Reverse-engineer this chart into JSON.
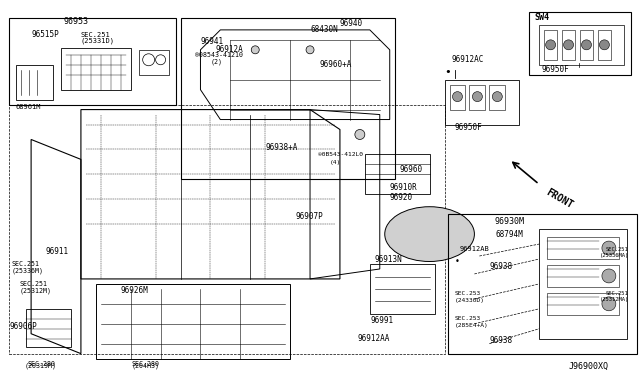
{
  "title": "",
  "bg_color": "#ffffff",
  "diagram_code": "J96900XQ",
  "parts": {
    "labels": [
      "96953",
      "96515P",
      "SEC.251\n(25331D)",
      "68961M",
      "96912A",
      "96941",
      "08543-41210\n(2)",
      "96940",
      "68430N",
      "96960+A",
      "96938+A",
      "0B543-41210\n(4)",
      "96960",
      "96910R",
      "96920",
      "96907P",
      "96913N",
      "96991",
      "96912AA",
      "96926M",
      "SEC.280\n(204H3)",
      "SEC.280\n(20319M)",
      "96911",
      "SEC.251\n(25336M)",
      "SEC.251\n(25312M)",
      "96906P",
      "96930M",
      "68794M",
      "96912AB",
      "96938",
      "SEC.251\n(25336MA)",
      "SEC.253\n(24330D)",
      "SEC.253\n(285E4+A)",
      "96938",
      "SEC.251\n(25312MA)",
      "96912AC",
      "96950F",
      "SW4",
      "96950F",
      "FRONT"
    ]
  },
  "colors": {
    "line": "#000000",
    "box_fill": "#f0f0f0",
    "bg": "#ffffff",
    "text": "#000000",
    "light_gray": "#e8e8e8"
  }
}
